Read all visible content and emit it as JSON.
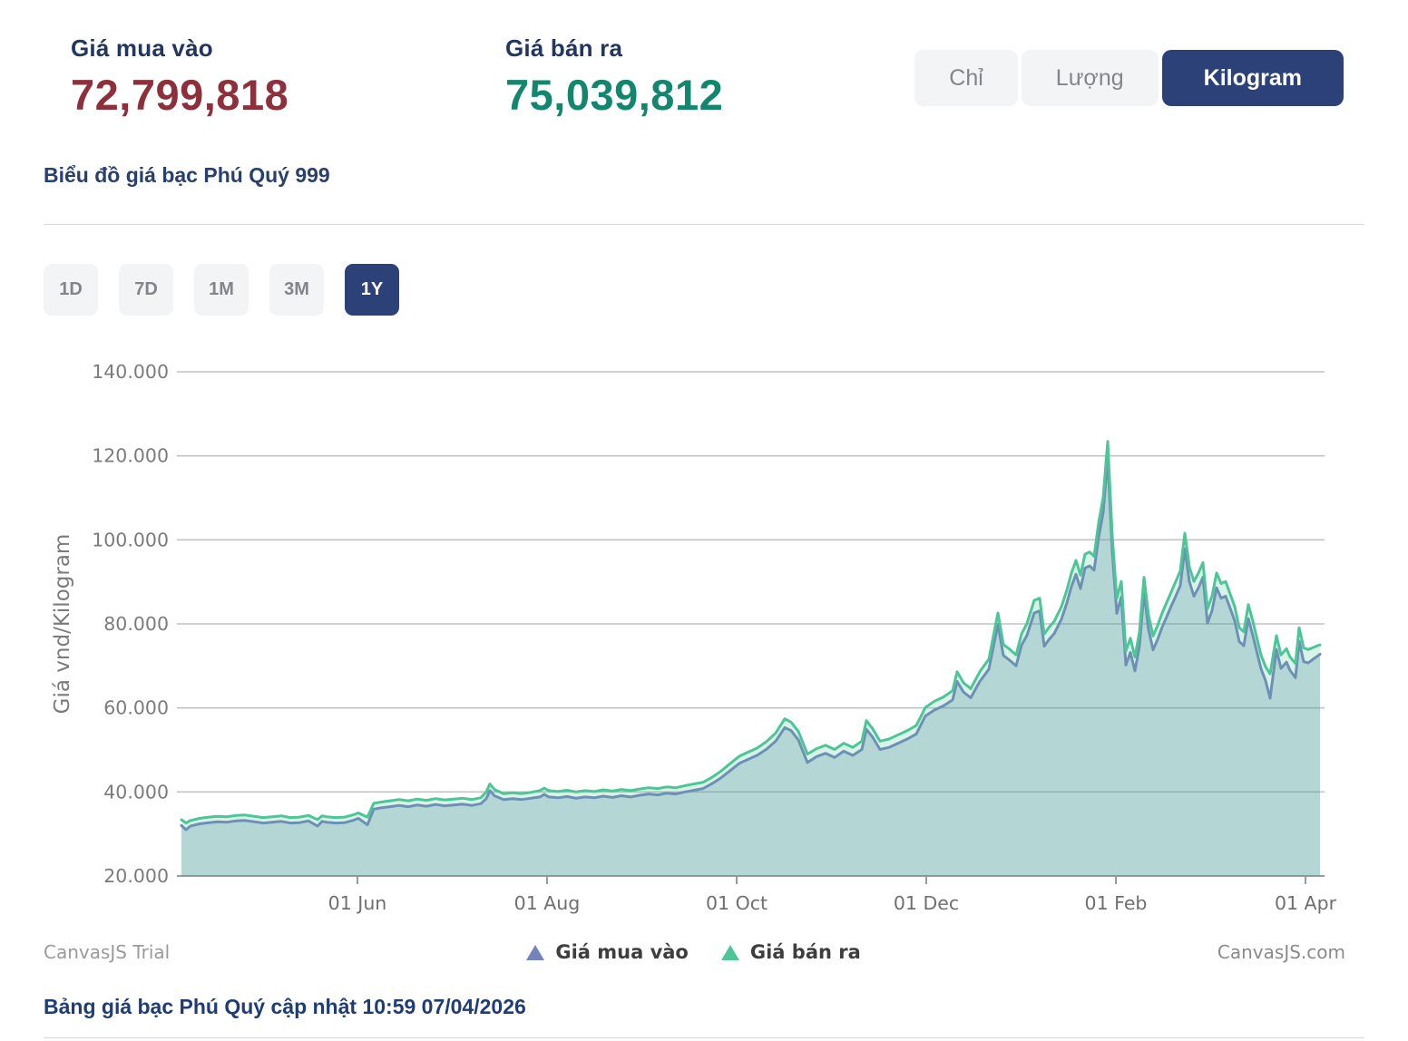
{
  "theme": {
    "accent_navy": "#2c4178",
    "buy_red": "#8e303c",
    "sell_green": "#13876e"
  },
  "header": {
    "buy": {
      "label": "Giá mua vào",
      "value": "72,799,818",
      "color": "#8e303c"
    },
    "sell": {
      "label": "Giá bán ra",
      "value": "75,039,812",
      "color": "#13876e"
    },
    "unit_toggle": {
      "options": [
        "Chỉ",
        "Lượng",
        "Kilogram"
      ],
      "active": "Kilogram"
    }
  },
  "chart_title_link": "Biểu đồ giá bạc Phú Quý 999",
  "range_buttons": {
    "options": [
      "1D",
      "7D",
      "1M",
      "3M",
      "1Y"
    ],
    "active": "1Y"
  },
  "footer": {
    "trial_label": "CanvasJS Trial",
    "brand_label": "CanvasJS.com",
    "update_text": "Bảng giá bạc Phú Quý cập nhật 10:59 07/04/2026"
  },
  "chart_data": {
    "type": "area",
    "y_axis": {
      "title": "Giá vnd/Kilogram",
      "ticks": [
        "20.000",
        "40.000",
        "60.000",
        "80.000",
        "100.000",
        "120.000",
        "140.000"
      ],
      "min": 20000,
      "max": 145000,
      "grid": true
    },
    "x_axis": {
      "ticks": [
        "01 Jun",
        "01 Aug",
        "01 Oct",
        "01 Dec",
        "01 Feb",
        "01 Apr"
      ]
    },
    "legend_position": "bottom",
    "series": [
      {
        "name": "Giá mua vào",
        "color": "#7583bd",
        "fill": "rgba(99,131,172,0.30)"
      },
      {
        "name": "Giá bán ra",
        "color": "#4cc697",
        "fill": "rgba(76,198,151,0.21)"
      }
    ],
    "points_format": "[x_px_from_plot_left (0=07/04/2025, 1255=07/04/2026), sell_value_thousands, buy_value_thousands]",
    "points": [
      [
        0,
        33.4,
        32.0
      ],
      [
        5,
        32.6,
        31.0
      ],
      [
        10,
        33.2,
        31.9
      ],
      [
        20,
        33.7,
        32.4
      ],
      [
        30,
        34.0,
        32.7
      ],
      [
        40,
        34.2,
        32.9
      ],
      [
        50,
        34.1,
        32.8
      ],
      [
        60,
        34.4,
        33.1
      ],
      [
        70,
        34.5,
        33.2
      ],
      [
        80,
        34.2,
        32.9
      ],
      [
        90,
        33.9,
        32.6
      ],
      [
        100,
        34.1,
        32.8
      ],
      [
        110,
        34.3,
        33.0
      ],
      [
        120,
        33.9,
        32.6
      ],
      [
        130,
        34.0,
        32.7
      ],
      [
        140,
        34.4,
        33.1
      ],
      [
        150,
        33.4,
        31.9
      ],
      [
        155,
        34.3,
        33.0
      ],
      [
        160,
        34.1,
        32.8
      ],
      [
        170,
        33.9,
        32.6
      ],
      [
        180,
        34.0,
        32.7
      ],
      [
        190,
        34.6,
        33.3
      ],
      [
        195,
        35.0,
        33.7
      ],
      [
        205,
        34.0,
        32.2
      ],
      [
        212,
        37.3,
        35.9
      ],
      [
        220,
        37.6,
        36.2
      ],
      [
        230,
        37.9,
        36.5
      ],
      [
        240,
        38.2,
        36.8
      ],
      [
        250,
        37.9,
        36.5
      ],
      [
        260,
        38.3,
        36.9
      ],
      [
        270,
        38.0,
        36.6
      ],
      [
        280,
        38.4,
        37.0
      ],
      [
        290,
        38.1,
        36.7
      ],
      [
        300,
        38.3,
        36.9
      ],
      [
        310,
        38.5,
        37.1
      ],
      [
        320,
        38.2,
        36.8
      ],
      [
        330,
        38.6,
        37.2
      ],
      [
        336,
        40.0,
        38.4
      ],
      [
        340,
        41.9,
        40.3
      ],
      [
        345,
        40.6,
        39.1
      ],
      [
        355,
        39.6,
        38.2
      ],
      [
        365,
        39.8,
        38.4
      ],
      [
        375,
        39.6,
        38.2
      ],
      [
        385,
        39.9,
        38.5
      ],
      [
        395,
        40.3,
        38.8
      ],
      [
        400,
        40.9,
        39.4
      ],
      [
        405,
        40.3,
        38.8
      ],
      [
        415,
        40.1,
        38.6
      ],
      [
        425,
        40.4,
        38.9
      ],
      [
        435,
        40.0,
        38.5
      ],
      [
        445,
        40.3,
        38.8
      ],
      [
        455,
        40.1,
        38.6
      ],
      [
        465,
        40.5,
        39.0
      ],
      [
        475,
        40.2,
        38.7
      ],
      [
        485,
        40.6,
        39.1
      ],
      [
        495,
        40.3,
        38.8
      ],
      [
        505,
        40.7,
        39.2
      ],
      [
        515,
        41.0,
        39.5
      ],
      [
        525,
        40.8,
        39.3
      ],
      [
        535,
        41.2,
        39.7
      ],
      [
        545,
        41.0,
        39.5
      ],
      [
        555,
        41.5,
        40.0
      ],
      [
        565,
        41.9,
        40.4
      ],
      [
        575,
        42.3,
        40.8
      ],
      [
        585,
        43.5,
        42.0
      ],
      [
        595,
        45.0,
        43.4
      ],
      [
        605,
        46.8,
        45.1
      ],
      [
        615,
        48.5,
        46.8
      ],
      [
        625,
        49.5,
        47.8
      ],
      [
        635,
        50.5,
        48.8
      ],
      [
        645,
        52.0,
        50.2
      ],
      [
        655,
        54.0,
        52.1
      ],
      [
        665,
        57.4,
        55.3
      ],
      [
        672,
        56.6,
        54.6
      ],
      [
        680,
        54.4,
        52.4
      ],
      [
        690,
        49.0,
        47.0
      ],
      [
        700,
        50.3,
        48.4
      ],
      [
        710,
        51.1,
        49.2
      ],
      [
        720,
        50.1,
        48.2
      ],
      [
        730,
        51.6,
        49.7
      ],
      [
        740,
        50.6,
        48.7
      ],
      [
        750,
        52.1,
        50.1
      ],
      [
        755,
        57.0,
        54.9
      ],
      [
        762,
        55.0,
        53.0
      ],
      [
        770,
        52.1,
        50.1
      ],
      [
        780,
        52.6,
        50.6
      ],
      [
        790,
        53.6,
        51.6
      ],
      [
        800,
        54.6,
        52.6
      ],
      [
        810,
        55.8,
        53.8
      ],
      [
        820,
        60.1,
        58.1
      ],
      [
        830,
        61.6,
        59.5
      ],
      [
        840,
        62.6,
        60.5
      ],
      [
        850,
        64.1,
        61.9
      ],
      [
        855,
        68.6,
        66.3
      ],
      [
        862,
        66.0,
        63.8
      ],
      [
        870,
        64.6,
        62.4
      ],
      [
        880,
        68.6,
        66.3
      ],
      [
        890,
        71.6,
        69.2
      ],
      [
        900,
        82.6,
        79.9
      ],
      [
        906,
        75.1,
        72.5
      ],
      [
        912,
        74.1,
        71.5
      ],
      [
        920,
        72.6,
        70.0
      ],
      [
        926,
        77.6,
        74.9
      ],
      [
        932,
        80.1,
        77.3
      ],
      [
        940,
        85.6,
        82.6
      ],
      [
        946,
        86.1,
        83.1
      ],
      [
        951,
        77.6,
        74.7
      ],
      [
        956,
        79.1,
        76.2
      ],
      [
        962,
        80.6,
        77.7
      ],
      [
        970,
        84.1,
        81.1
      ],
      [
        976,
        88.1,
        85.0
      ],
      [
        981,
        92.1,
        88.9
      ],
      [
        986,
        95.1,
        91.8
      ],
      [
        991,
        91.6,
        88.4
      ],
      [
        996,
        96.6,
        93.3
      ],
      [
        1001,
        97.1,
        93.8
      ],
      [
        1006,
        96.1,
        92.8
      ],
      [
        1011,
        104.1,
        100.6
      ],
      [
        1016,
        110.1,
        106.5
      ],
      [
        1021,
        123.4,
        119.4
      ],
      [
        1026,
        101.1,
        97.3
      ],
      [
        1031,
        86.1,
        82.5
      ],
      [
        1036,
        90.1,
        86.4
      ],
      [
        1041,
        73.6,
        70.2
      ],
      [
        1046,
        76.6,
        73.2
      ],
      [
        1051,
        72.1,
        68.8
      ],
      [
        1056,
        78.1,
        74.7
      ],
      [
        1061,
        91.1,
        87.6
      ],
      [
        1066,
        82.1,
        78.7
      ],
      [
        1071,
        77.1,
        73.8
      ],
      [
        1076,
        79.6,
        76.3
      ],
      [
        1081,
        82.6,
        79.2
      ],
      [
        1086,
        85.1,
        81.7
      ],
      [
        1091,
        87.6,
        84.2
      ],
      [
        1096,
        90.1,
        86.6
      ],
      [
        1101,
        92.6,
        89.1
      ],
      [
        1106,
        101.6,
        97.9
      ],
      [
        1111,
        93.6,
        90.1
      ],
      [
        1116,
        90.1,
        86.6
      ],
      [
        1121,
        92.1,
        88.6
      ],
      [
        1126,
        94.6,
        91.1
      ],
      [
        1131,
        83.6,
        80.2
      ],
      [
        1136,
        86.6,
        83.2
      ],
      [
        1141,
        92.1,
        88.6
      ],
      [
        1146,
        89.6,
        86.1
      ],
      [
        1151,
        90.1,
        86.6
      ],
      [
        1156,
        87.1,
        83.7
      ],
      [
        1161,
        84.1,
        80.7
      ],
      [
        1166,
        79.1,
        75.8
      ],
      [
        1171,
        78.1,
        74.8
      ],
      [
        1176,
        84.6,
        81.2
      ],
      [
        1181,
        80.6,
        77.2
      ],
      [
        1186,
        76.1,
        72.8
      ],
      [
        1190,
        72.6,
        69.3
      ],
      [
        1195,
        69.8,
        66.5
      ],
      [
        1200,
        68.1,
        62.3
      ],
      [
        1207,
        77.2,
        73.9
      ],
      [
        1212,
        72.6,
        69.4
      ],
      [
        1218,
        74.1,
        70.9
      ],
      [
        1222,
        72.1,
        68.9
      ],
      [
        1228,
        70.6,
        67.2
      ],
      [
        1232,
        79.1,
        75.9
      ],
      [
        1237,
        74.3,
        71.0
      ],
      [
        1242,
        73.9,
        70.7
      ],
      [
        1248,
        74.4,
        71.7
      ],
      [
        1252,
        74.8,
        72.3
      ],
      [
        1255,
        75.0,
        72.8
      ]
    ]
  }
}
